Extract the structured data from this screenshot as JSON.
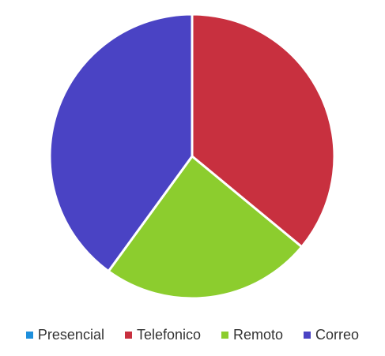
{
  "chart_data": {
    "type": "pie",
    "title": "",
    "slices": [
      {
        "label": "Presencial",
        "value": 0,
        "color": "#1e8fdc"
      },
      {
        "label": "Telefonico",
        "value": 36,
        "color": "#c8303f"
      },
      {
        "label": "Remoto",
        "value": 24,
        "color": "#8ccd2e"
      },
      {
        "label": "Correo",
        "value": 40,
        "color": "#4a43c4"
      }
    ],
    "start_angle_deg": 0,
    "direction": "clockwise",
    "legend_position": "bottom"
  }
}
